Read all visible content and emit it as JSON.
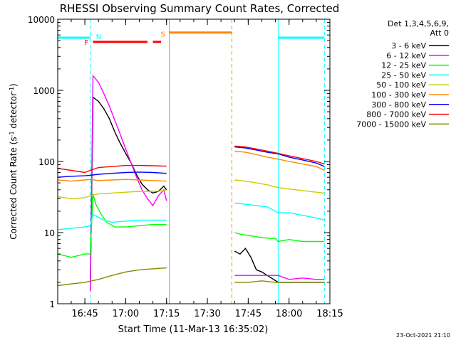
{
  "title": "RHESSI Observing Summary Count Rates, Corrected",
  "footer_date": "23-Oct-2021 21:10",
  "chart_data": {
    "type": "line",
    "title": "RHESSI Observing Summary Count Rates, Corrected",
    "xlabel": "Start Time (11-Mar-13 16:35:02)",
    "ylabel": "Corrected Count Rate (s⁻¹ detector⁻¹)",
    "ylabel_main": "Corrected Count Rate (s",
    "ylabel_exp1": "-1",
    "ylabel_mid": " detector",
    "ylabel_exp2": "-1",
    "ylabel_end": ")",
    "yscale": "log",
    "ylim": [
      1,
      10000
    ],
    "xlim": [
      "16:35:02",
      "18:15:00"
    ],
    "x_ticks": [
      "16:45",
      "17:00",
      "17:15",
      "17:30",
      "17:45",
      "18:00",
      "18:15"
    ],
    "y_ticks": [
      {
        "value": 1,
        "label": "1"
      },
      {
        "value": 10,
        "label": "10"
      },
      {
        "value": 100,
        "label": "100"
      },
      {
        "value": 1000,
        "label": "1000"
      },
      {
        "value": 10000,
        "label": "10000"
      }
    ],
    "grid": false,
    "legend_placement": "right",
    "legend_header": [
      "Det 1,3,4,5,6,9,",
      "Att 0"
    ],
    "series": [
      {
        "name": "3 - 6 keV",
        "color": "#000000",
        "points": [
          [
            "16:35",
            1.5
          ],
          [
            "16:47",
            1.5
          ],
          [
            "16:48",
            800
          ],
          [
            "16:50",
            700
          ],
          [
            "16:52",
            550
          ],
          [
            "16:54",
            400
          ],
          [
            "16:56",
            260
          ],
          [
            "16:58",
            180
          ],
          [
            "17:00",
            130
          ],
          [
            "17:02",
            95
          ],
          [
            "17:04",
            65
          ],
          [
            "17:06",
            48
          ],
          [
            "17:08",
            40
          ],
          [
            "17:10",
            36
          ],
          [
            "17:12",
            38
          ],
          [
            "17:14",
            45
          ],
          [
            "17:15",
            40
          ],
          [
            "17:40",
            5.5
          ],
          [
            "17:42",
            5
          ],
          [
            "17:44",
            6
          ],
          [
            "17:46",
            4.5
          ],
          [
            "17:48",
            3
          ],
          [
            "17:50",
            2.8
          ],
          [
            "17:52",
            2.5
          ],
          [
            "17:56",
            2
          ],
          [
            "18:00",
            2
          ],
          [
            "18:05",
            2
          ],
          [
            "18:10",
            2
          ],
          [
            "18:13",
            2
          ]
        ]
      },
      {
        "name": "6 - 12 keV",
        "color": "#ff00ff",
        "points": [
          [
            "16:35",
            1.5
          ],
          [
            "16:47",
            1.5
          ],
          [
            "16:48",
            1600
          ],
          [
            "16:50",
            1300
          ],
          [
            "16:52",
            900
          ],
          [
            "16:54",
            600
          ],
          [
            "16:56",
            380
          ],
          [
            "16:58",
            240
          ],
          [
            "17:00",
            150
          ],
          [
            "17:02",
            95
          ],
          [
            "17:04",
            60
          ],
          [
            "17:06",
            40
          ],
          [
            "17:08",
            30
          ],
          [
            "17:10",
            24
          ],
          [
            "17:12",
            33
          ],
          [
            "17:14",
            40
          ],
          [
            "17:15",
            28
          ],
          [
            "17:40",
            2.5
          ],
          [
            "17:50",
            2.5
          ],
          [
            "17:56",
            2.5
          ],
          [
            "18:00",
            2.2
          ],
          [
            "18:05",
            2.3
          ],
          [
            "18:10",
            2.2
          ],
          [
            "18:13",
            2.2
          ]
        ]
      },
      {
        "name": "12 - 25 keV",
        "color": "#00ff00",
        "points": [
          [
            "16:35",
            5
          ],
          [
            "16:40",
            4.5
          ],
          [
            "16:45",
            5
          ],
          [
            "16:47",
            5
          ],
          [
            "16:48",
            35
          ],
          [
            "16:49",
            25
          ],
          [
            "16:51",
            18
          ],
          [
            "16:53",
            14
          ],
          [
            "16:56",
            12
          ],
          [
            "17:00",
            12
          ],
          [
            "17:05",
            12.5
          ],
          [
            "17:10",
            13
          ],
          [
            "17:15",
            13
          ],
          [
            "17:40",
            10
          ],
          [
            "17:42",
            9.5
          ],
          [
            "17:46",
            9
          ],
          [
            "17:50",
            8.5
          ],
          [
            "17:55",
            8.2
          ],
          [
            "17:56",
            7.5
          ],
          [
            "18:00",
            8
          ],
          [
            "18:05",
            7.5
          ],
          [
            "18:10",
            7.5
          ],
          [
            "18:13",
            7.5
          ]
        ]
      },
      {
        "name": "25 - 50 keV",
        "color": "#00ffff",
        "points": [
          [
            "16:35",
            11
          ],
          [
            "16:40",
            11.5
          ],
          [
            "16:45",
            12
          ],
          [
            "16:47",
            12.5
          ],
          [
            "16:48",
            18
          ],
          [
            "16:52",
            15
          ],
          [
            "16:55",
            14
          ],
          [
            "17:00",
            14.5
          ],
          [
            "17:05",
            15
          ],
          [
            "17:10",
            15
          ],
          [
            "17:15",
            15
          ],
          [
            "17:40",
            26
          ],
          [
            "17:44",
            25
          ],
          [
            "17:48",
            24
          ],
          [
            "17:52",
            23
          ],
          [
            "17:56",
            19
          ],
          [
            "18:00",
            19
          ],
          [
            "18:05",
            17.5
          ],
          [
            "18:10",
            16
          ],
          [
            "18:13",
            15
          ]
        ]
      },
      {
        "name": "50 - 100 keV",
        "color": "#cccc00",
        "points": [
          [
            "16:35",
            32
          ],
          [
            "16:40",
            30
          ],
          [
            "16:45",
            31
          ],
          [
            "16:47",
            33
          ],
          [
            "16:50",
            35
          ],
          [
            "16:55",
            36
          ],
          [
            "17:00",
            37
          ],
          [
            "17:05",
            38
          ],
          [
            "17:10",
            38
          ],
          [
            "17:15",
            39
          ],
          [
            "17:40",
            55
          ],
          [
            "17:44",
            53
          ],
          [
            "17:48",
            50
          ],
          [
            "17:52",
            47
          ],
          [
            "17:56",
            43
          ],
          [
            "18:00",
            41
          ],
          [
            "18:05",
            39
          ],
          [
            "18:10",
            37
          ],
          [
            "18:13",
            36
          ]
        ]
      },
      {
        "name": "100 - 300 keV",
        "color": "#ff8800",
        "points": [
          [
            "16:35",
            55
          ],
          [
            "16:40",
            53
          ],
          [
            "16:45",
            55
          ],
          [
            "16:47",
            56
          ],
          [
            "16:50",
            54
          ],
          [
            "16:55",
            55
          ],
          [
            "17:00",
            56
          ],
          [
            "17:05",
            55
          ],
          [
            "17:10",
            54
          ],
          [
            "17:15",
            53
          ],
          [
            "17:40",
            140
          ],
          [
            "17:44",
            135
          ],
          [
            "17:48",
            125
          ],
          [
            "17:52",
            115
          ],
          [
            "17:56",
            108
          ],
          [
            "18:00",
            100
          ],
          [
            "18:05",
            92
          ],
          [
            "18:10",
            85
          ],
          [
            "18:13",
            75
          ]
        ]
      },
      {
        "name": "300 - 800 keV",
        "color": "#0000ff",
        "points": [
          [
            "16:35",
            60
          ],
          [
            "16:40",
            62
          ],
          [
            "16:45",
            63
          ],
          [
            "16:47",
            64
          ],
          [
            "16:50",
            66
          ],
          [
            "16:55",
            68
          ],
          [
            "17:00",
            70
          ],
          [
            "17:05",
            71
          ],
          [
            "17:10",
            70
          ],
          [
            "17:15",
            68
          ],
          [
            "17:40",
            160
          ],
          [
            "17:44",
            155
          ],
          [
            "17:48",
            145
          ],
          [
            "17:52",
            135
          ],
          [
            "17:56",
            128
          ],
          [
            "18:00",
            115
          ],
          [
            "18:05",
            105
          ],
          [
            "18:10",
            95
          ],
          [
            "18:13",
            85
          ]
        ]
      },
      {
        "name": "800 - 7000 keV",
        "color": "#ff0000",
        "points": [
          [
            "16:35",
            80
          ],
          [
            "16:40",
            75
          ],
          [
            "16:45",
            70
          ],
          [
            "16:47",
            75
          ],
          [
            "16:50",
            82
          ],
          [
            "16:55",
            85
          ],
          [
            "17:00",
            88
          ],
          [
            "17:05",
            88
          ],
          [
            "17:10",
            87
          ],
          [
            "17:15",
            86
          ],
          [
            "17:40",
            165
          ],
          [
            "17:44",
            160
          ],
          [
            "17:48",
            150
          ],
          [
            "17:52",
            140
          ],
          [
            "17:56",
            130
          ],
          [
            "18:00",
            120
          ],
          [
            "18:05",
            110
          ],
          [
            "18:10",
            100
          ],
          [
            "18:13",
            92
          ]
        ]
      },
      {
        "name": "7000 - 15000 keV",
        "color": "#888800",
        "points": [
          [
            "16:35",
            1.8
          ],
          [
            "16:40",
            1.9
          ],
          [
            "16:45",
            2
          ],
          [
            "16:50",
            2.2
          ],
          [
            "16:55",
            2.5
          ],
          [
            "17:00",
            2.8
          ],
          [
            "17:05",
            3
          ],
          [
            "17:10",
            3.1
          ],
          [
            "17:15",
            3.2
          ],
          [
            "17:40",
            2
          ],
          [
            "17:45",
            2
          ],
          [
            "17:50",
            2.1
          ],
          [
            "17:55",
            2
          ],
          [
            "18:00",
            2
          ],
          [
            "18:05",
            2
          ],
          [
            "18:10",
            2
          ],
          [
            "18:13",
            2
          ]
        ]
      }
    ],
    "annotations": [
      {
        "label": "N",
        "color": "#00ffff",
        "kind": "night",
        "segments": [
          [
            "16:35",
            "16:47"
          ],
          [
            "17:56",
            "18:13"
          ]
        ],
        "y": 5500,
        "boundaries": [
          "16:35",
          "16:47",
          "17:56",
          "18:13"
        ]
      },
      {
        "label": "S",
        "color": "#ff8800",
        "kind": "saa",
        "segments": [
          [
            "17:16",
            "17:39"
          ]
        ],
        "y": 6500,
        "boundaries": [
          "17:16",
          "17:39"
        ]
      },
      {
        "label": "F",
        "color": "#ff0000",
        "kind": "flare",
        "segments": [
          [
            "16:48",
            "17:08"
          ],
          [
            "17:10",
            "17:13"
          ]
        ],
        "y": 4800,
        "boundaries": []
      }
    ]
  }
}
